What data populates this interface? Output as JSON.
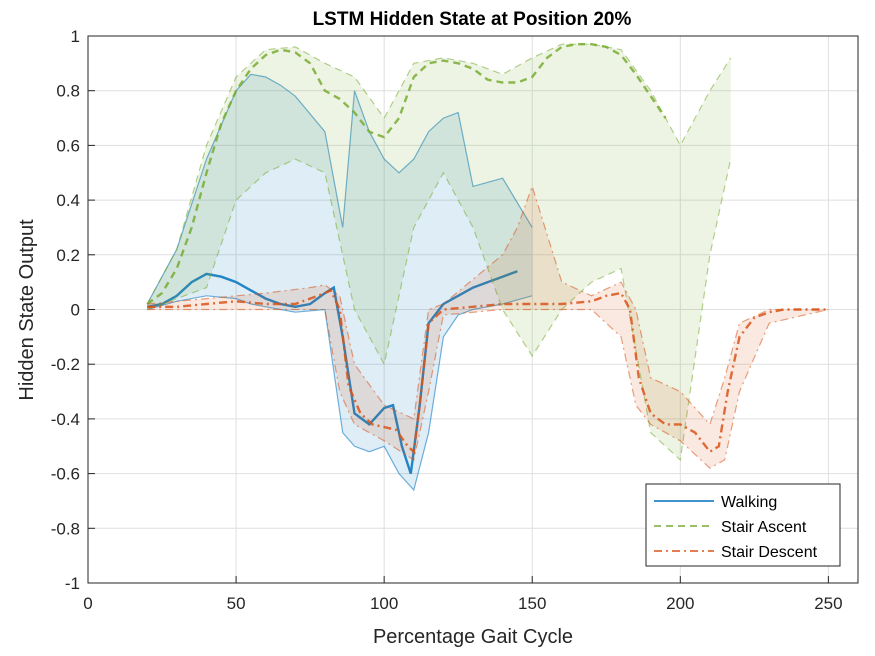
{
  "chart_data": {
    "type": "line",
    "title": "LSTM Hidden State at Position 20%",
    "xlabel": "Percentage Gait Cycle",
    "ylabel": "Hidden State Output",
    "xlim": [
      0,
      260
    ],
    "ylim": [
      -1,
      1
    ],
    "xticks": [
      0,
      50,
      100,
      150,
      200,
      250
    ],
    "yticks": [
      -1,
      -0.8,
      -0.6,
      -0.4,
      -0.2,
      0,
      0.2,
      0.4,
      0.6,
      0.8,
      1
    ],
    "grid": true,
    "legend_position": "bottom-right",
    "series": [
      {
        "name": "Walking",
        "color": "#0072BD",
        "style": "solid",
        "x": [
          20,
          25,
          30,
          35,
          40,
          45,
          50,
          55,
          60,
          65,
          70,
          75,
          80,
          83,
          86,
          90,
          95,
          100,
          103,
          106,
          109,
          112,
          115,
          120,
          125,
          130,
          135,
          140,
          145
        ],
        "y": [
          0.01,
          0.02,
          0.05,
          0.1,
          0.13,
          0.12,
          0.1,
          0.07,
          0.04,
          0.02,
          0.01,
          0.02,
          0.06,
          0.08,
          -0.1,
          -0.38,
          -0.42,
          -0.36,
          -0.35,
          -0.5,
          -0.6,
          -0.35,
          -0.05,
          0.02,
          0.05,
          0.08,
          0.1,
          0.12,
          0.14
        ],
        "envelope": {
          "x": [
            20,
            30,
            40,
            50,
            55,
            60,
            65,
            70,
            80,
            86,
            90,
            95,
            100,
            105,
            110,
            115,
            120,
            125,
            130,
            140,
            150
          ],
          "upper": [
            0.02,
            0.22,
            0.55,
            0.8,
            0.86,
            0.85,
            0.82,
            0.78,
            0.65,
            0.3,
            0.8,
            0.65,
            0.55,
            0.5,
            0.55,
            0.65,
            0.7,
            0.72,
            0.45,
            0.48,
            0.3
          ],
          "lower": [
            0.0,
            0.03,
            0.05,
            0.04,
            0.02,
            0.01,
            0.0,
            -0.01,
            0.0,
            -0.45,
            -0.5,
            -0.52,
            -0.5,
            -0.6,
            -0.66,
            -0.45,
            -0.1,
            -0.02,
            0.0,
            0.02,
            0.05
          ]
        }
      },
      {
        "name": "Stair Ascent",
        "color": "#77AC30",
        "style": "dashed",
        "x": [
          20,
          25,
          30,
          35,
          40,
          45,
          50,
          55,
          60,
          65,
          70,
          75,
          80,
          85,
          90,
          95,
          100,
          105,
          110,
          115,
          120,
          125,
          130,
          135,
          140,
          145,
          150,
          155,
          160,
          165,
          170,
          175,
          180,
          185,
          190,
          195
        ],
        "y": [
          0.02,
          0.06,
          0.15,
          0.3,
          0.5,
          0.68,
          0.8,
          0.88,
          0.93,
          0.95,
          0.94,
          0.9,
          0.8,
          0.77,
          0.72,
          0.65,
          0.63,
          0.7,
          0.85,
          0.9,
          0.91,
          0.9,
          0.88,
          0.84,
          0.83,
          0.83,
          0.85,
          0.92,
          0.96,
          0.97,
          0.97,
          0.96,
          0.93,
          0.86,
          0.78,
          0.7
        ],
        "envelope": {
          "x": [
            20,
            30,
            40,
            50,
            60,
            70,
            80,
            90,
            100,
            110,
            120,
            130,
            140,
            150,
            160,
            170,
            180,
            190,
            200,
            210,
            217
          ],
          "upper": [
            0.02,
            0.22,
            0.6,
            0.85,
            0.95,
            0.96,
            0.9,
            0.85,
            0.7,
            0.9,
            0.92,
            0.9,
            0.86,
            0.92,
            0.97,
            0.97,
            0.95,
            0.8,
            0.6,
            0.8,
            0.92
          ],
          "lower": [
            0.0,
            0.04,
            0.08,
            0.4,
            0.5,
            0.55,
            0.5,
            0.0,
            -0.2,
            0.3,
            0.5,
            0.3,
            0.0,
            -0.17,
            0.0,
            0.1,
            0.15,
            -0.45,
            -0.55,
            0.2,
            0.55
          ]
        }
      },
      {
        "name": "Stair Descent",
        "color": "#D95319",
        "style": "dashdot",
        "x": [
          20,
          30,
          40,
          50,
          60,
          70,
          75,
          80,
          82,
          85,
          88,
          92,
          96,
          100,
          104,
          108,
          110,
          112,
          115,
          120,
          130,
          140,
          150,
          160,
          170,
          175,
          180,
          183,
          186,
          190,
          195,
          200,
          205,
          210,
          213,
          216,
          220,
          225,
          230,
          235,
          240,
          245,
          250
        ],
        "y": [
          0.01,
          0.01,
          0.02,
          0.03,
          0.02,
          0.02,
          0.04,
          0.06,
          0.07,
          0.0,
          -0.28,
          -0.38,
          -0.42,
          -0.43,
          -0.44,
          -0.5,
          -0.52,
          -0.35,
          -0.05,
          0.0,
          0.01,
          0.02,
          0.02,
          0.02,
          0.03,
          0.05,
          0.06,
          0.0,
          -0.25,
          -0.38,
          -0.42,
          -0.42,
          -0.45,
          -0.52,
          -0.5,
          -0.3,
          -0.1,
          -0.03,
          -0.01,
          0.0,
          0.0,
          0.0,
          0.0
        ],
        "envelope": {
          "x": [
            20,
            40,
            60,
            75,
            80,
            85,
            90,
            100,
            110,
            115,
            120,
            140,
            145,
            150,
            160,
            170,
            180,
            185,
            190,
            200,
            210,
            215,
            220,
            230,
            250
          ],
          "upper": [
            0.02,
            0.04,
            0.06,
            0.08,
            0.09,
            0.05,
            -0.2,
            -0.35,
            -0.4,
            0.0,
            0.02,
            0.2,
            0.3,
            0.45,
            0.1,
            0.05,
            0.1,
            0.0,
            -0.25,
            -0.3,
            -0.42,
            -0.25,
            -0.05,
            0.0,
            0.0
          ],
          "lower": [
            0.0,
            0.0,
            0.0,
            0.0,
            0.0,
            -0.3,
            -0.42,
            -0.48,
            -0.55,
            -0.3,
            -0.02,
            0.0,
            0.0,
            0.0,
            0.0,
            0.0,
            -0.1,
            -0.35,
            -0.42,
            -0.48,
            -0.58,
            -0.55,
            -0.3,
            -0.05,
            0.0
          ]
        }
      }
    ]
  }
}
